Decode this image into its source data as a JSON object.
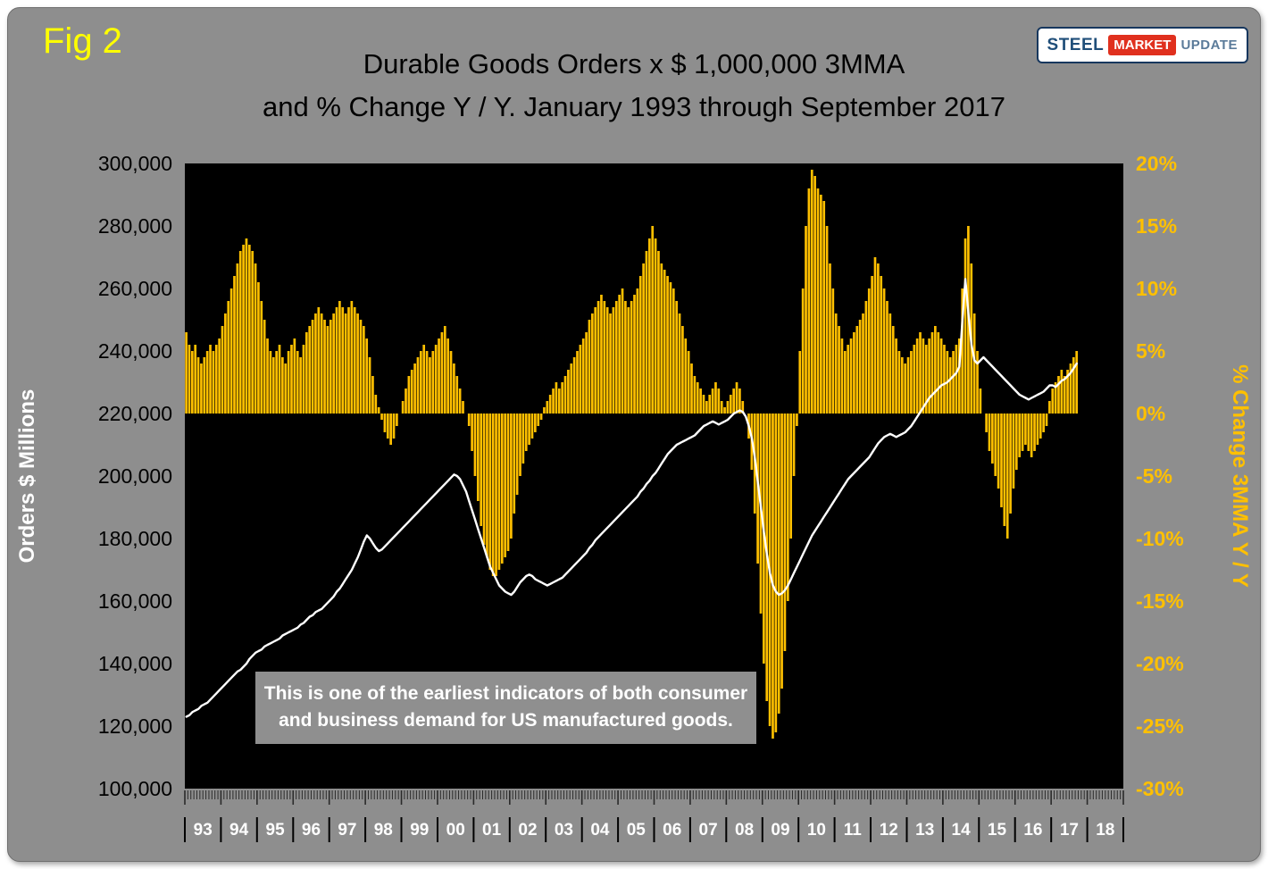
{
  "header": {
    "fig_label": "Fig 2",
    "title_line1": "Durable Goods Orders x $ 1,000,000 3MMA",
    "title_line2": "and % Change Y / Y. January 1993 through September 2017"
  },
  "logo": {
    "part1": "STEEL",
    "part2": "MARKET",
    "part3": "UPDATE"
  },
  "annotation": {
    "text": "This is one of the earliest indicators of both consumer and business demand for US manufactured goods."
  },
  "colors": {
    "board_bg": "#8e8e8e",
    "plot_bg": "#000000",
    "bar": "#FFC000",
    "line": "#FFFFFF",
    "fig_label": "#ffff00",
    "right_axis_text": "#FFC000",
    "left_axis_text": "#000000"
  },
  "chart_data": {
    "type": "bar",
    "subtype": "combo-bar-line",
    "title": "Durable Goods Orders x $ 1,000,000 3MMA and % Change Y / Y. January 1993 through September 2017",
    "x_start": "1993-01",
    "x_end": "2017-09",
    "x_axis_years": [
      "93",
      "94",
      "95",
      "96",
      "97",
      "98",
      "99",
      "00",
      "01",
      "02",
      "03",
      "04",
      "05",
      "06",
      "07",
      "08",
      "09",
      "10",
      "11",
      "12",
      "13",
      "14",
      "15",
      "16",
      "17",
      "18"
    ],
    "left_axis": {
      "label": "Orders $ Millions",
      "min": 100000,
      "max": 300000,
      "step": 20000
    },
    "right_axis": {
      "label": "% Change 3MMA Y / Y",
      "min": -30,
      "max": 20,
      "step": 5,
      "unit": "%"
    },
    "plot_bg": "#000000",
    "grid": false,
    "legend_position": "none",
    "series": [
      {
        "name": "% Change 3MMA Y/Y",
        "type": "bar",
        "axis": "right",
        "color": "#FFC000",
        "values": [
          6.5,
          5.5,
          5,
          5.5,
          4.5,
          4,
          4.5,
          5,
          5.5,
          5,
          5.5,
          6,
          7,
          8,
          9,
          10,
          11,
          12,
          13,
          13.5,
          14,
          13.5,
          13,
          12,
          10.5,
          9,
          7.5,
          6,
          5,
          4.5,
          5,
          5.5,
          4.5,
          4,
          5,
          5.5,
          6,
          5,
          4.5,
          5.5,
          6.5,
          7,
          7.5,
          8,
          8.5,
          8,
          7.5,
          7,
          7.5,
          8,
          8.5,
          9,
          8.5,
          8,
          8.5,
          9,
          8.5,
          8,
          7.5,
          7,
          6,
          4.5,
          3,
          1.5,
          0.5,
          -0.5,
          -1.5,
          -2,
          -2.5,
          -2,
          -1,
          0,
          1,
          2,
          3,
          3.5,
          4,
          4.5,
          5,
          5.5,
          5,
          4.5,
          5,
          5.5,
          6,
          6.5,
          7,
          6,
          5,
          4,
          3,
          2,
          1,
          0,
          -1,
          -3,
          -5,
          -7,
          -9,
          -10.5,
          -11.5,
          -12.5,
          -13,
          -13,
          -12.5,
          -12,
          -11.5,
          -11,
          -10,
          -8,
          -6.5,
          -5,
          -4,
          -3,
          -2.5,
          -2,
          -1.5,
          -1,
          -0.5,
          0.5,
          1,
          1.5,
          2,
          2.5,
          2,
          2.5,
          3,
          3.5,
          4,
          4.5,
          5,
          5.5,
          6,
          6.5,
          7.5,
          8,
          8.5,
          9,
          9.5,
          9,
          8.5,
          8,
          8.5,
          9,
          9.5,
          10,
          9,
          8.5,
          9,
          9.5,
          10,
          11,
          12,
          13,
          14,
          15,
          14,
          13,
          12,
          11.5,
          11,
          10.5,
          10,
          9,
          8,
          7,
          6,
          5,
          4,
          3,
          2.5,
          2,
          1.5,
          1,
          1.5,
          2,
          2.5,
          2,
          1,
          0.5,
          1,
          1.5,
          2,
          2.5,
          2,
          1,
          0,
          -2,
          -4.5,
          -8,
          -12,
          -16,
          -20,
          -23,
          -25,
          -26,
          -25.5,
          -24,
          -22,
          -19,
          -15,
          -10,
          -5,
          -1,
          5,
          10,
          15,
          18,
          19.5,
          19,
          18,
          17.5,
          17,
          15,
          12,
          10,
          8,
          7,
          6,
          5,
          5.5,
          6,
          6.5,
          7,
          7.5,
          8,
          9,
          10,
          11,
          12.5,
          12,
          11,
          10,
          9,
          8,
          7,
          6,
          5,
          4.5,
          4,
          4.5,
          5,
          5.5,
          6,
          6.5,
          6,
          5.5,
          6,
          6.5,
          7,
          6.5,
          6,
          5.5,
          5,
          4.5,
          5,
          5.5,
          6,
          10,
          14,
          15,
          12,
          8,
          5,
          2,
          0,
          -1.5,
          -3,
          -4,
          -5,
          -6,
          -7.5,
          -9,
          -10,
          -8,
          -6,
          -4.5,
          -3.5,
          -3,
          -2.5,
          -3,
          -3.5,
          -3,
          -2.5,
          -2,
          -1.5,
          -1,
          1,
          2,
          2.5,
          3,
          3.5,
          3,
          3.5,
          4,
          4.5,
          5
        ]
      },
      {
        "name": "Durable Goods Orders 3MMA ($ Millions)",
        "type": "line",
        "axis": "left",
        "color": "#FFFFFF",
        "values": [
          123000,
          123500,
          124500,
          125000,
          125500,
          126500,
          127000,
          127500,
          128500,
          129500,
          130500,
          131500,
          132500,
          133500,
          134500,
          135500,
          136500,
          137500,
          138000,
          139000,
          140000,
          141500,
          142500,
          143500,
          144000,
          144500,
          145500,
          146000,
          146500,
          147000,
          147500,
          148000,
          149000,
          149500,
          150000,
          150500,
          151000,
          151500,
          152500,
          153000,
          154000,
          155000,
          155500,
          156500,
          157000,
          157500,
          158500,
          159500,
          160500,
          161500,
          163000,
          164000,
          165500,
          167000,
          168500,
          170000,
          172000,
          174000,
          176500,
          179000,
          181000,
          180000,
          178500,
          177000,
          176000,
          176500,
          177500,
          178500,
          179500,
          180500,
          181500,
          182500,
          183500,
          184500,
          185500,
          186500,
          187500,
          188500,
          189500,
          190500,
          191500,
          192500,
          193500,
          194500,
          195500,
          196500,
          197500,
          198500,
          199500,
          200500,
          200000,
          199000,
          197000,
          195000,
          192000,
          189000,
          186000,
          183000,
          180000,
          177000,
          174000,
          171000,
          169000,
          167000,
          165000,
          164000,
          163000,
          162500,
          162000,
          163000,
          164500,
          166000,
          167000,
          168000,
          168500,
          168000,
          167000,
          166500,
          166000,
          165500,
          165000,
          165500,
          166000,
          166500,
          167000,
          167500,
          168500,
          169500,
          170500,
          171500,
          172500,
          173500,
          174500,
          175500,
          177000,
          178000,
          179500,
          180500,
          181500,
          182500,
          183500,
          184500,
          185500,
          186500,
          187500,
          188500,
          189500,
          190500,
          191500,
          192500,
          193500,
          195000,
          196000,
          197500,
          198500,
          200000,
          201000,
          202500,
          204000,
          205500,
          207000,
          208000,
          209000,
          210000,
          210500,
          211000,
          211500,
          212000,
          212500,
          213000,
          214000,
          215000,
          216000,
          216500,
          217000,
          217500,
          217000,
          216500,
          217000,
          217500,
          218000,
          219000,
          220000,
          220500,
          221000,
          220500,
          219000,
          216000,
          212000,
          206000,
          198000,
          190000,
          182000,
          175000,
          169000,
          165000,
          163000,
          162000,
          162500,
          163500,
          165000,
          167000,
          169000,
          171000,
          173000,
          175000,
          177000,
          179000,
          181000,
          182500,
          184000,
          185500,
          187000,
          188500,
          190000,
          191500,
          193000,
          194500,
          196000,
          197500,
          199000,
          200000,
          201000,
          202000,
          203000,
          204000,
          205000,
          206000,
          207500,
          209000,
          210500,
          211500,
          212500,
          213000,
          213500,
          213000,
          212500,
          213000,
          213500,
          214000,
          215000,
          216000,
          217500,
          219000,
          220500,
          222000,
          223500,
          225000,
          226000,
          227000,
          228000,
          229000,
          229500,
          230000,
          231000,
          232000,
          233000,
          235000,
          250000,
          263000,
          252000,
          242000,
          237000,
          236000,
          237000,
          238000,
          237000,
          236000,
          235000,
          234000,
          233000,
          232000,
          231000,
          230000,
          229000,
          228000,
          227000,
          226000,
          225500,
          225000,
          224500,
          225000,
          225500,
          226000,
          226500,
          227000,
          228000,
          229000,
          229000,
          228500,
          229500,
          230500,
          231000,
          232000,
          233000,
          234500,
          236000
        ]
      }
    ]
  }
}
